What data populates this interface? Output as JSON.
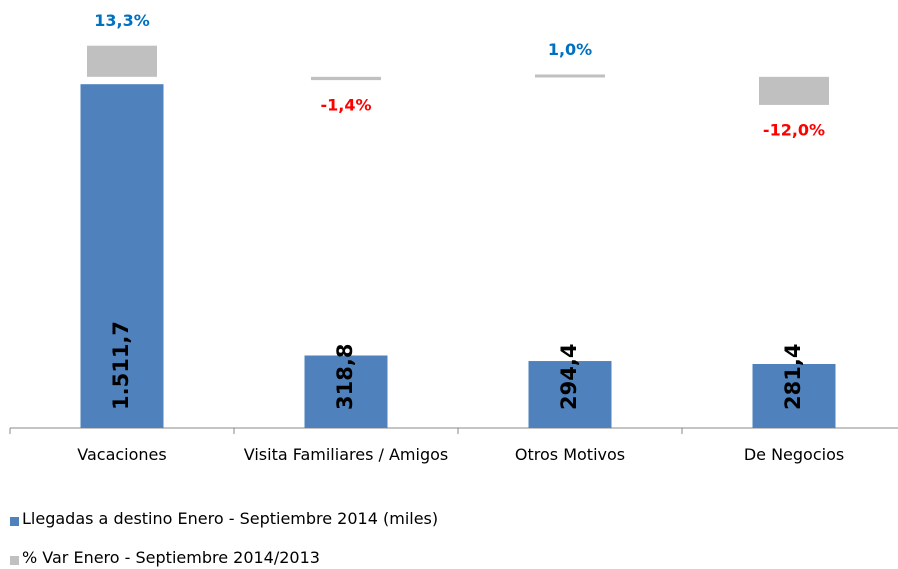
{
  "chart_data": {
    "type": "bar",
    "categories": [
      "Vacaciones",
      "Visita Familiares / Amigos",
      "Otros Motivos",
      "De Negocios"
    ],
    "series": [
      {
        "name": "Llegadas a destino Enero - Septiembre 2014 (miles)",
        "color": "#4f81bd",
        "values": [
          1511.7,
          318.8,
          294.4,
          281.4
        ],
        "value_labels": [
          "1.511,7",
          "318,8",
          "294,4",
          "281,4"
        ]
      },
      {
        "name": "% Var Enero - Septiembre 2014/2013",
        "color": "#c0c0c0",
        "axis": "y2",
        "values": [
          13.3,
          -1.4,
          1.0,
          -12.0
        ],
        "value_labels": [
          "13,3%",
          "-1,4%",
          "1,0%",
          "-12,0%"
        ],
        "positive_label_color": "#0070c0",
        "negative_label_color": "#ff0000"
      }
    ],
    "ylim": [
      0,
      1750
    ],
    "y2lim": [
      -150,
      20
    ],
    "legend": "bottom"
  }
}
